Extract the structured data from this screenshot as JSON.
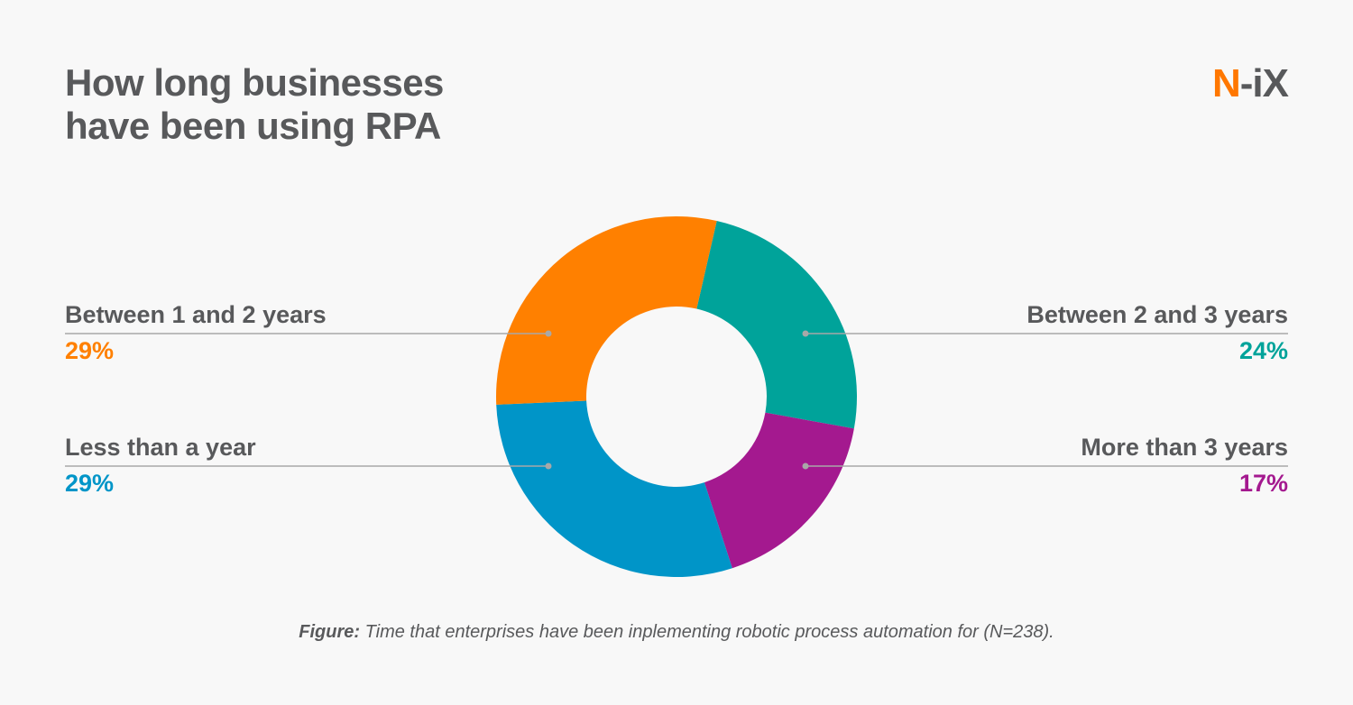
{
  "title_line1": "How long businesses",
  "title_line2": "have been using RPA",
  "logo": {
    "n": "N",
    "rest": "-iX"
  },
  "caption": {
    "bold": "Figure:",
    "text": " Time that enterprises have been inplementing robotic process automation for (N=238)."
  },
  "chart_data": {
    "type": "pie",
    "donut": true,
    "title": "How long businesses have been using RPA",
    "slices": [
      {
        "label": "Between 2 and 3 years",
        "value": 24,
        "display": "24%",
        "color": "#00a39a"
      },
      {
        "label": "More than 3 years",
        "value": 17,
        "display": "17%",
        "color": "#a4198f"
      },
      {
        "label": "Less than a year",
        "value": 29,
        "display": "29%",
        "color": "#0095c8"
      },
      {
        "label": "Between 1 and 2 years",
        "value": 29,
        "display": "29%",
        "color": "#ff8000"
      }
    ]
  }
}
